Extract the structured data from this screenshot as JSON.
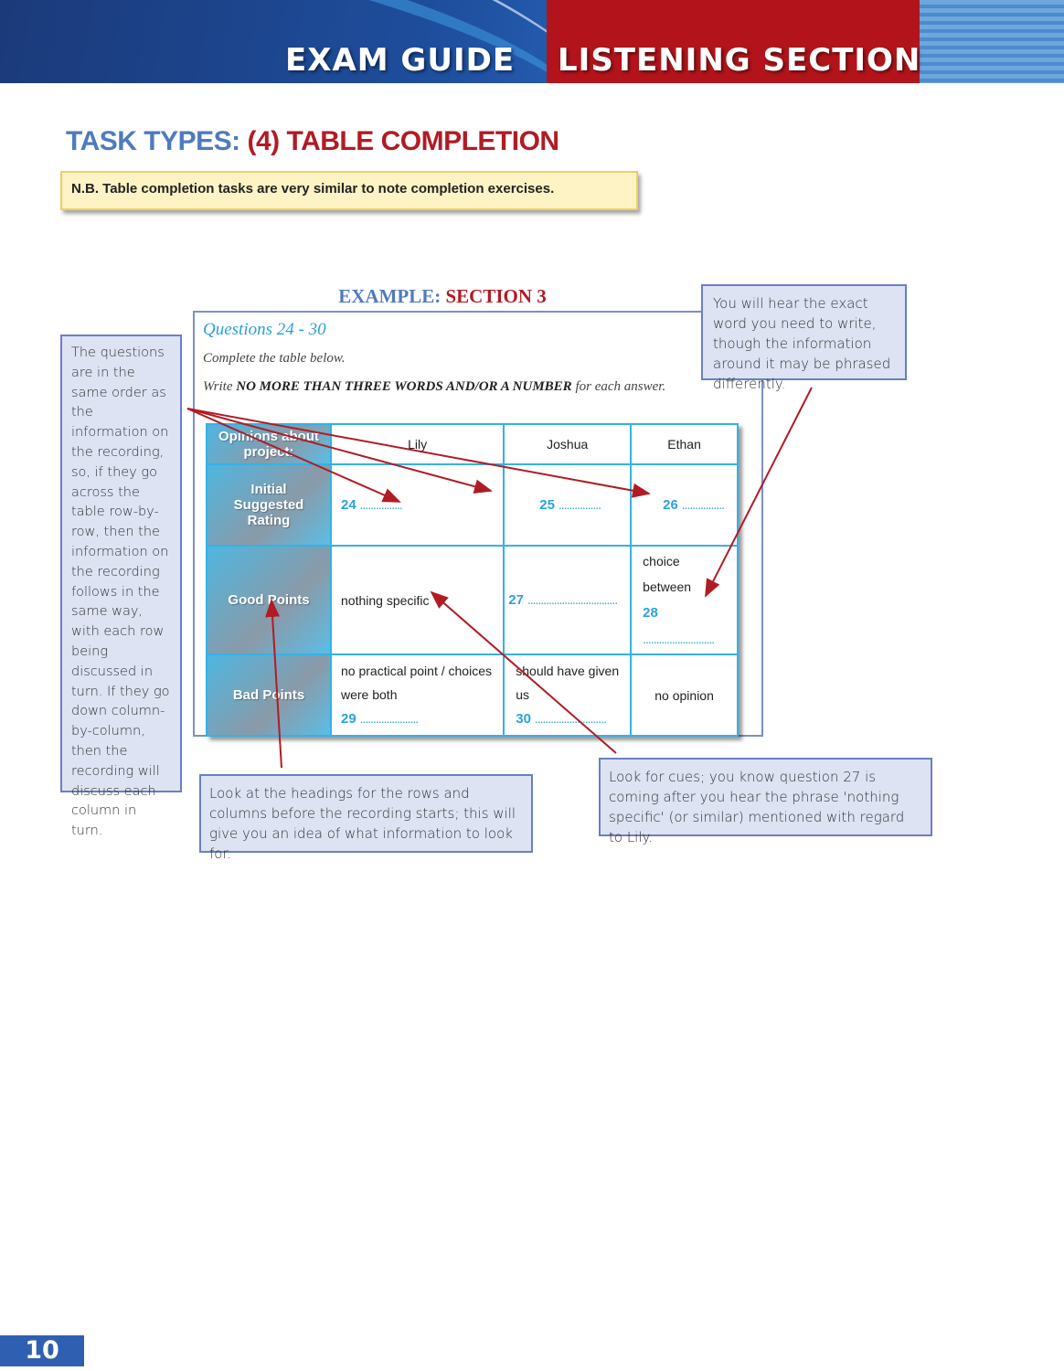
{
  "header": {
    "left": "EXAM GUIDE",
    "right": "LISTENING SECTION"
  },
  "title": {
    "part1": "TASK TYPES:",
    "part2": "(4) TABLE COMPLETION"
  },
  "nb": "N.B. Table completion tasks are very similar to note completion exercises.",
  "example": {
    "label": "EXAMPLE:",
    "section": "SECTION 3"
  },
  "task": {
    "questions": "Questions 24 - 30",
    "instruction": "Complete the table below.",
    "write_pre": "Write",
    "write_bold": "NO MORE THAN THREE WORDS AND/OR A NUMBER",
    "write_post": "for each answer."
  },
  "table": {
    "corner": "Opinions about project:",
    "columns": [
      "Lily",
      "Joshua",
      "Ethan"
    ],
    "rows": [
      {
        "header": "Initial Suggested Rating",
        "cells": [
          {
            "num": "24",
            "dots": "................"
          },
          {
            "num": "25",
            "dots": "................"
          },
          {
            "num": "26",
            "dots": "................"
          }
        ]
      },
      {
        "header": "Good Points",
        "cells": [
          {
            "text": "nothing specific"
          },
          {
            "num": "27",
            "dots": ".................................."
          },
          {
            "text": "choice between",
            "num": "28",
            "dots": "..........................."
          }
        ]
      },
      {
        "header": "Bad Points",
        "cells": [
          {
            "text": "no practical point / choices were both",
            "num": "29",
            "dots": "......................"
          },
          {
            "text": "should have given us",
            "num": "30",
            "dots": "..........................."
          },
          {
            "text": "no opinion"
          }
        ]
      }
    ]
  },
  "notes": {
    "left": "The questions are in the same order as the information on the recording, so, if they go across the table row-by-row, then the information on the recording follows in the same way, with each row being discussed in turn. If they go down column-by-column, then the recording will discuss each column in turn.",
    "top_right": "You will hear the exact word you need to write, though the information around it may be phrased differently.",
    "bottom_left": "Look at the headings for the rows and columns before the recording starts; this will give you an idea of what information to look for.",
    "bottom_right": "Look for cues; you know question 27 is coming after you hear the phrase 'nothing specific' (or similar) mentioned with regard to Lily."
  },
  "page_number": "10",
  "colors": {
    "blue": "#4f7bbd",
    "red": "#b01c24",
    "cyan": "#34b2e4",
    "note_bg": "#dde3f3"
  }
}
